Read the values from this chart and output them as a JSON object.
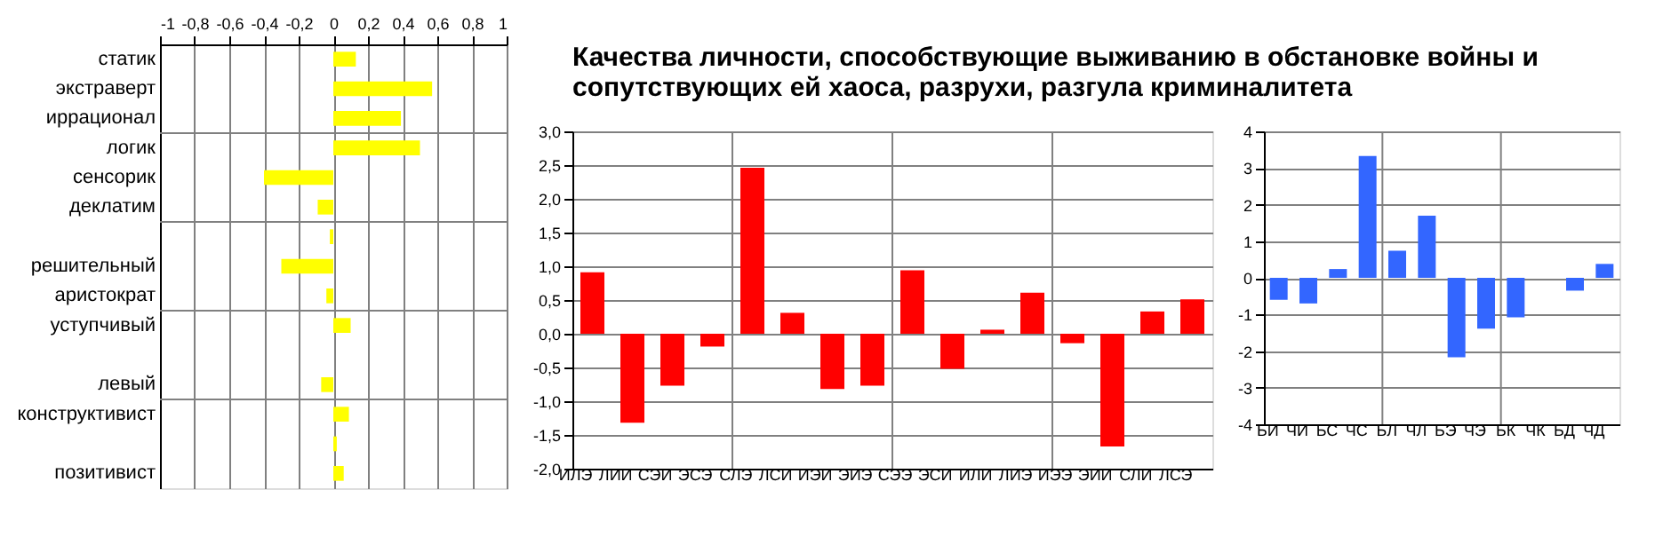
{
  "chart_data": [
    {
      "type": "bar",
      "orientation": "horizontal",
      "categories": [
        "статик",
        "экстраверт",
        "иррационал",
        "логик",
        "сенсорик",
        "деклатим",
        null,
        "решительный",
        "аристократ",
        "уступчивый",
        null,
        "левый",
        "конструктивист",
        null,
        "позитивист"
      ],
      "values": [
        0.13,
        0.57,
        0.39,
        0.5,
        -0.4,
        -0.09,
        -0.02,
        -0.3,
        -0.04,
        0.1,
        null,
        -0.07,
        0.09,
        0.02,
        0.06
      ],
      "color": "#ffff00",
      "xlim": [
        -1,
        1
      ],
      "xticks": [
        -1,
        {
          "value": -0.8,
          "label": "-0,8"
        },
        {
          "value": -0.6,
          "label": "-0,6"
        },
        {
          "value": -0.4,
          "label": "-0,4"
        },
        {
          "value": -0.2,
          "label": "-0,2"
        },
        0,
        {
          "value": 0.2,
          "label": "0,2"
        },
        {
          "value": 0.4,
          "label": "0,4"
        },
        {
          "value": 0.6,
          "label": "0,6"
        },
        {
          "value": 0.8,
          "label": "0,8"
        },
        1
      ],
      "grid": true
    },
    {
      "type": "bar",
      "title": "Качества личности, способствующие выживанию в обстановке войны и сопутствующих ей хаоса, разрухи, разгула криминалитета",
      "categories": [
        "ИЛЭ",
        "ЛИИ",
        "СЭИ",
        "ЭСЭ",
        "СЛЭ",
        "ЛСИ",
        "ИЭИ",
        "ЭИЭ",
        "СЭЭ",
        "ЭСИ",
        "ИЛИ",
        "ЛИЭ",
        "ИЭЭ",
        "ЭИИ",
        "СЛИ",
        "ЛСЭ"
      ],
      "values": [
        0.91,
        -1.32,
        -0.77,
        -0.19,
        2.46,
        0.31,
        -0.82,
        -0.77,
        0.94,
        -0.52,
        0.06,
        0.61,
        -0.14,
        -1.67,
        0.33,
        0.51
      ],
      "color": "#ff0000",
      "ylim": [
        -2,
        3
      ],
      "yticks": [
        {
          "value": -2,
          "label": "-2,0"
        },
        {
          "value": -1.5,
          "label": "-1,5"
        },
        {
          "value": -1,
          "label": "-1,0"
        },
        {
          "value": -0.5,
          "label": "-0,5"
        },
        {
          "value": 0,
          "label": "0,0"
        },
        {
          "value": 0.5,
          "label": "0,5"
        },
        {
          "value": 1,
          "label": "1,0"
        },
        {
          "value": 1.5,
          "label": "1,5"
        },
        {
          "value": 2,
          "label": "2,0"
        },
        {
          "value": 2.5,
          "label": "2,5"
        },
        {
          "value": 3,
          "label": "3,0"
        }
      ],
      "grid": true
    },
    {
      "type": "bar",
      "categories": [
        "БИ",
        "ЧИ",
        "БС",
        "ЧС",
        "БЛ",
        "ЧЛ",
        "БЭ",
        "ЧЭ",
        "БК",
        "ЧК",
        "БД",
        "ЧД"
      ],
      "values": [
        -0.6,
        -0.7,
        0.24,
        3.33,
        0.74,
        1.7,
        -2.17,
        -1.39,
        -1.08,
        null,
        -0.35,
        0.38
      ],
      "color": "#3366ff",
      "ylim": [
        -4,
        4
      ],
      "yticks": [
        -4,
        -3,
        -2,
        -1,
        0,
        1,
        2,
        3,
        4
      ],
      "grid": true
    }
  ]
}
